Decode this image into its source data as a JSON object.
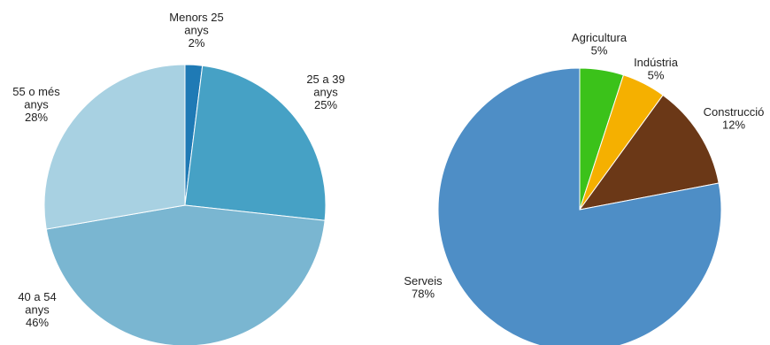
{
  "chart_data": [
    {
      "type": "pie",
      "title": "",
      "slices": [
        {
          "lines": [
            "Menors 25",
            "anys",
            "2%"
          ],
          "value": 2,
          "color": "#1F7AB5"
        },
        {
          "lines": [
            "25 a 39",
            "anys",
            "25%"
          ],
          "value": 25,
          "color": "#46A1C5"
        },
        {
          "lines": [
            "40 a 54",
            "anys",
            "46%"
          ],
          "value": 46,
          "color": "#7AB6D1"
        },
        {
          "lines": [
            "55 o més",
            "anys",
            "28%"
          ],
          "value": 28,
          "color": "#A8D1E2"
        }
      ]
    },
    {
      "type": "pie",
      "title": "",
      "slices": [
        {
          "lines": [
            "Agricultura",
            "5%"
          ],
          "value": 5,
          "color": "#3BC21A"
        },
        {
          "lines": [
            "Indústria",
            "5%"
          ],
          "value": 5,
          "color": "#F5B000"
        },
        {
          "lines": [
            "Construcció",
            "12%"
          ],
          "value": 12,
          "color": "#6B3817"
        },
        {
          "lines": [
            "Serveis",
            "78%"
          ],
          "value": 78,
          "color": "#4E8EC6"
        }
      ]
    }
  ]
}
